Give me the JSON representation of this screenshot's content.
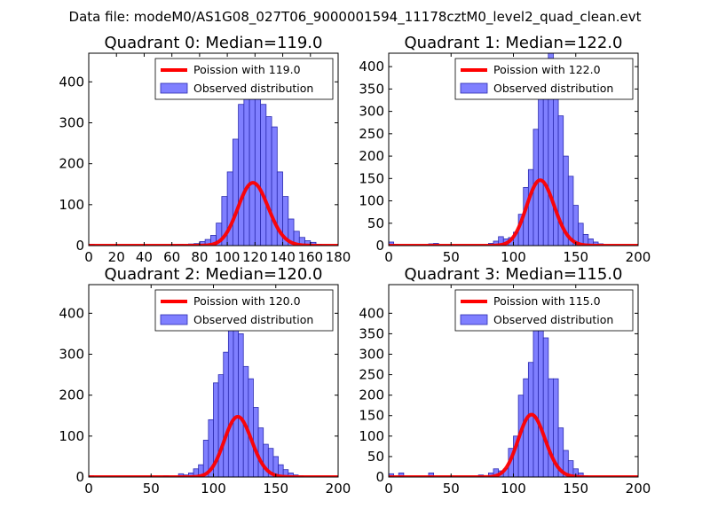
{
  "suptitle": "Data file: modeM0/AS1G08_027T06_9000001594_11178cztM0_level2_quad_clean.evt",
  "colors": {
    "hist_fill": "#7f7fff",
    "hist_edge": "#2b2bb0",
    "poisson_line": "#ff0000",
    "axes": "#000000"
  },
  "chart_data": [
    {
      "type": "bar",
      "title": "Quadrant 0: Median=119.0",
      "median": 119.0,
      "xlim": [
        0,
        180
      ],
      "ylim": [
        0,
        470
      ],
      "xticks": [
        0,
        20,
        40,
        60,
        80,
        100,
        120,
        140,
        160,
        180
      ],
      "xtick_labels": [
        "0",
        "20",
        "40",
        "60",
        "80",
        "100",
        "120",
        "140",
        "160",
        "180"
      ],
      "yticks": [
        0,
        100,
        200,
        300,
        400
      ],
      "ytick_labels": [
        "0",
        "100",
        "200",
        "300",
        "400"
      ],
      "legend_location": "top-right",
      "legend": [
        "Poission with 119.0",
        "Observed distribution"
      ],
      "bin_start": 0,
      "bin_width": 4,
      "counts": [
        3,
        0,
        0,
        0,
        0,
        0,
        0,
        0,
        0,
        0,
        0,
        0,
        0,
        0,
        0,
        2,
        3,
        2,
        4,
        5,
        10,
        15,
        25,
        55,
        120,
        180,
        260,
        345,
        400,
        440,
        385,
        345,
        315,
        290,
        180,
        120,
        65,
        35,
        20,
        12,
        8,
        3,
        1,
        0,
        0
      ],
      "poisson_lambda": 119.0,
      "poisson_scale": 4200
    },
    {
      "type": "bar",
      "title": "Quadrant 1: Median=122.0",
      "median": 122.0,
      "xlim": [
        0,
        200
      ],
      "ylim": [
        0,
        430
      ],
      "xticks": [
        0,
        50,
        100,
        150,
        200
      ],
      "xtick_labels": [
        "0",
        "50",
        "100",
        "150",
        "200"
      ],
      "yticks": [
        0,
        50,
        100,
        150,
        200,
        250,
        300,
        350,
        400
      ],
      "ytick_labels": [
        "0",
        "50",
        "100",
        "150",
        "200",
        "250",
        "300",
        "350",
        "400"
      ],
      "legend_location": "top-right",
      "legend": [
        "Poission with 122.0",
        "Observed distribution"
      ],
      "bin_start": 0,
      "bin_width": 4,
      "counts": [
        8,
        3,
        0,
        0,
        0,
        0,
        0,
        0,
        4,
        5,
        0,
        0,
        0,
        0,
        0,
        0,
        0,
        0,
        0,
        0,
        5,
        10,
        20,
        15,
        18,
        30,
        70,
        130,
        170,
        260,
        360,
        415,
        430,
        370,
        290,
        200,
        155,
        90,
        50,
        25,
        15,
        8,
        4,
        0,
        0,
        0,
        0,
        0,
        0,
        0
      ],
      "poisson_lambda": 122.0,
      "poisson_scale": 4050
    },
    {
      "type": "bar",
      "title": "Quadrant 2: Median=120.0",
      "median": 120.0,
      "xlim": [
        0,
        200
      ],
      "ylim": [
        0,
        470
      ],
      "xticks": [
        0,
        50,
        100,
        150,
        200
      ],
      "xtick_labels": [
        "0",
        "50",
        "100",
        "150",
        "200"
      ],
      "yticks": [
        0,
        100,
        200,
        300,
        400
      ],
      "ytick_labels": [
        "0",
        "100",
        "200",
        "300",
        "400"
      ],
      "legend_location": "top-right",
      "legend": [
        "Poission with 120.0",
        "Observed distribution"
      ],
      "bin_start": 0,
      "bin_width": 4,
      "counts": [
        3,
        0,
        0,
        0,
        0,
        0,
        0,
        0,
        0,
        0,
        0,
        0,
        0,
        0,
        0,
        3,
        0,
        0,
        8,
        5,
        10,
        20,
        30,
        90,
        140,
        230,
        250,
        305,
        360,
        440,
        350,
        270,
        240,
        170,
        120,
        80,
        70,
        50,
        30,
        18,
        10,
        5,
        3,
        0,
        0,
        0,
        0,
        0,
        0,
        0
      ],
      "poisson_lambda": 120.0,
      "poisson_scale": 4050
    },
    {
      "type": "bar",
      "title": "Quadrant 3: Median=115.0",
      "median": 115.0,
      "xlim": [
        0,
        200
      ],
      "ylim": [
        0,
        470
      ],
      "xticks": [
        0,
        50,
        100,
        150,
        200
      ],
      "xtick_labels": [
        "0",
        "50",
        "100",
        "150",
        "200"
      ],
      "yticks": [
        0,
        50,
        100,
        150,
        200,
        250,
        300,
        350,
        400
      ],
      "ytick_labels": [
        "0",
        "50",
        "100",
        "150",
        "200",
        "250",
        "300",
        "350",
        "400"
      ],
      "legend_location": "top-right",
      "legend": [
        "Poission with 115.0",
        "Observed distribution"
      ],
      "bin_start": 0,
      "bin_width": 4,
      "counts": [
        8,
        0,
        10,
        0,
        0,
        0,
        0,
        0,
        10,
        0,
        0,
        0,
        0,
        0,
        0,
        0,
        0,
        0,
        5,
        0,
        10,
        20,
        15,
        20,
        70,
        100,
        200,
        240,
        280,
        375,
        430,
        340,
        240,
        240,
        120,
        65,
        40,
        20,
        10,
        3,
        0,
        0,
        0,
        0,
        0,
        0,
        0,
        0,
        0,
        0
      ],
      "poisson_lambda": 115.0,
      "poisson_scale": 4100
    }
  ]
}
